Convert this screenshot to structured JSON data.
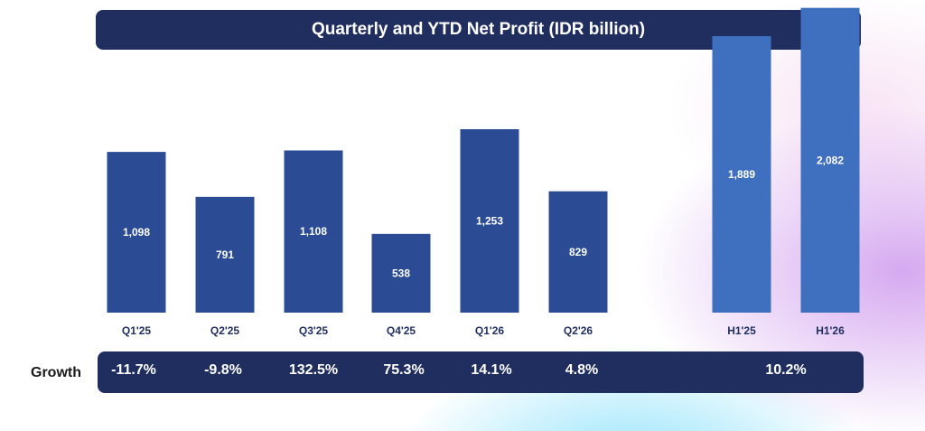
{
  "title": "Quarterly and YTD Net Profit (IDR billion)",
  "chart_data": {
    "type": "bar",
    "categories": [
      "Q1'25",
      "Q2'25",
      "Q3'25",
      "Q4'25",
      "Q1'26",
      "Q2'26",
      "H1'25",
      "H1'26"
    ],
    "values": [
      1098,
      791,
      1108,
      538,
      1253,
      829,
      1889,
      2082
    ],
    "data_labels": [
      "1,098",
      "791",
      "1,108",
      "538",
      "1,253",
      "829",
      "1,889",
      "2,082"
    ],
    "groups": [
      "quarterly",
      "quarterly",
      "quarterly",
      "quarterly",
      "quarterly",
      "quarterly",
      "ytd",
      "ytd"
    ],
    "colors": {
      "quarterly": "#2b4c94",
      "ytd": "#3f70bf"
    },
    "title": "Quarterly and YTD Net Profit (IDR billion)",
    "xlabel": "",
    "ylabel": ""
  },
  "growth": {
    "label": "Growth",
    "quarterly": [
      "-11.7%",
      "-9.8%",
      "132.5%",
      "75.3%",
      "14.1%",
      "4.8%"
    ],
    "ytd": "10.2%"
  }
}
